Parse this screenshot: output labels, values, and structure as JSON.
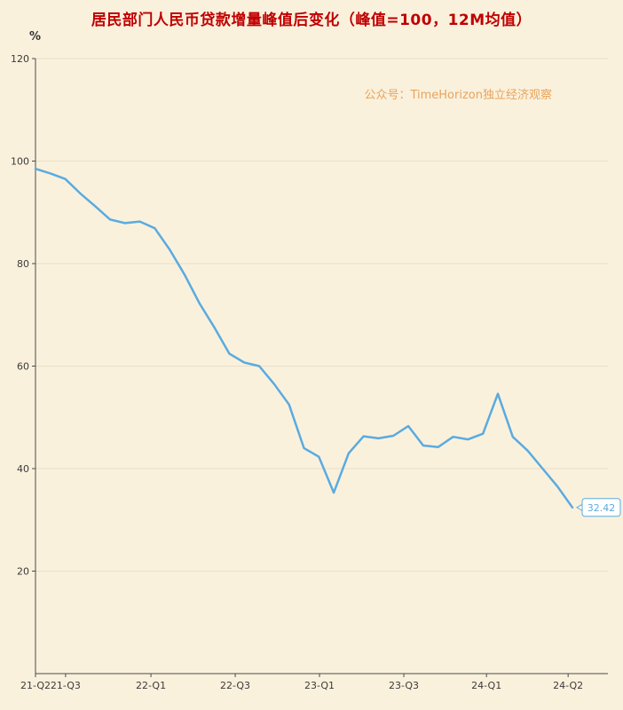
{
  "page": {
    "background_color": "#faf1dd",
    "grid_color": "#e9dfc8",
    "axis_color": "#4a4a4a",
    "tick_text_color": "#3a3a3a"
  },
  "title": {
    "text": "居民部门人民币贷款增量峰值后变化（峰值=100，12M均值）",
    "color": "#c00000"
  },
  "watermark": {
    "text": "公众号：TimeHorizon独立经济观察",
    "color": "#e8a45c"
  },
  "chart_data": {
    "type": "line",
    "title": "居民部门人民币贷款增量峰值后变化（峰值=100，12M均值）",
    "y_unit_label": "%",
    "ylim": [
      0,
      120
    ],
    "y_ticks": [
      20,
      40,
      60,
      80,
      100,
      120
    ],
    "grid": "horizontal",
    "legend": "none",
    "line_color": "#5aabdf",
    "x_tick_labels": [
      "21-Q2",
      "21-Q3",
      "22-Q1",
      "22-Q3",
      "23-Q1",
      "23-Q3",
      "24-Q1",
      "24-Q2"
    ],
    "x_tick_positions": [
      0,
      0.056,
      0.215,
      0.372,
      0.529,
      0.686,
      0.84,
      0.992
    ],
    "x_months": [
      "2021-06",
      "2021-07",
      "2021-08",
      "2021-09",
      "2021-10",
      "2021-11",
      "2021-12",
      "2022-01",
      "2022-02",
      "2022-03",
      "2022-04",
      "2022-05",
      "2022-06",
      "2022-07",
      "2022-08",
      "2022-09",
      "2022-10",
      "2022-11",
      "2022-12",
      "2023-01",
      "2023-02",
      "2023-03",
      "2023-04",
      "2023-05",
      "2023-06",
      "2023-07",
      "2023-08",
      "2023-09",
      "2023-10",
      "2023-11",
      "2023-12",
      "2024-01",
      "2024-02",
      "2024-03",
      "2024-04",
      "2024-05",
      "2024-06"
    ],
    "values": [
      98.5,
      97.6,
      96.5,
      93.7,
      91.2,
      88.6,
      87.9,
      88.2,
      86.9,
      82.7,
      77.8,
      72.2,
      67.5,
      62.4,
      60.7,
      60.0,
      56.5,
      52.5,
      44.0,
      42.3,
      35.3,
      43.0,
      46.3,
      45.9,
      46.4,
      48.3,
      44.5,
      44.2,
      46.2,
      45.7,
      46.8,
      54.6,
      46.2,
      43.5,
      40.0,
      36.5,
      32.42
    ],
    "end_label": "32.42"
  }
}
